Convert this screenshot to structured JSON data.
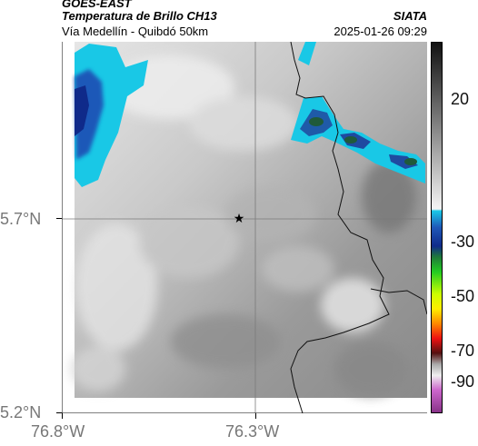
{
  "header": {
    "satellite": "GOES-EAST",
    "product": "Temperatura de Brillo CH13",
    "region": "Vía Medellín - Quibdó 50km",
    "org": "SIATA",
    "datetime": "2025-01-26 09:29"
  },
  "axes": {
    "lat_labels": [
      "5.7°N",
      "5.2°N"
    ],
    "lon_labels": [
      "76.8°W",
      "76.3°W"
    ]
  },
  "colorbar": {
    "ticks": [
      "20",
      "-30",
      "-50",
      "-70",
      "-90"
    ]
  },
  "colors": {
    "cold_blue": "#1e3fa8",
    "cyan": "#19c8e6",
    "dark_green": "#1f5a3a",
    "grid": "#7a7a7a"
  }
}
